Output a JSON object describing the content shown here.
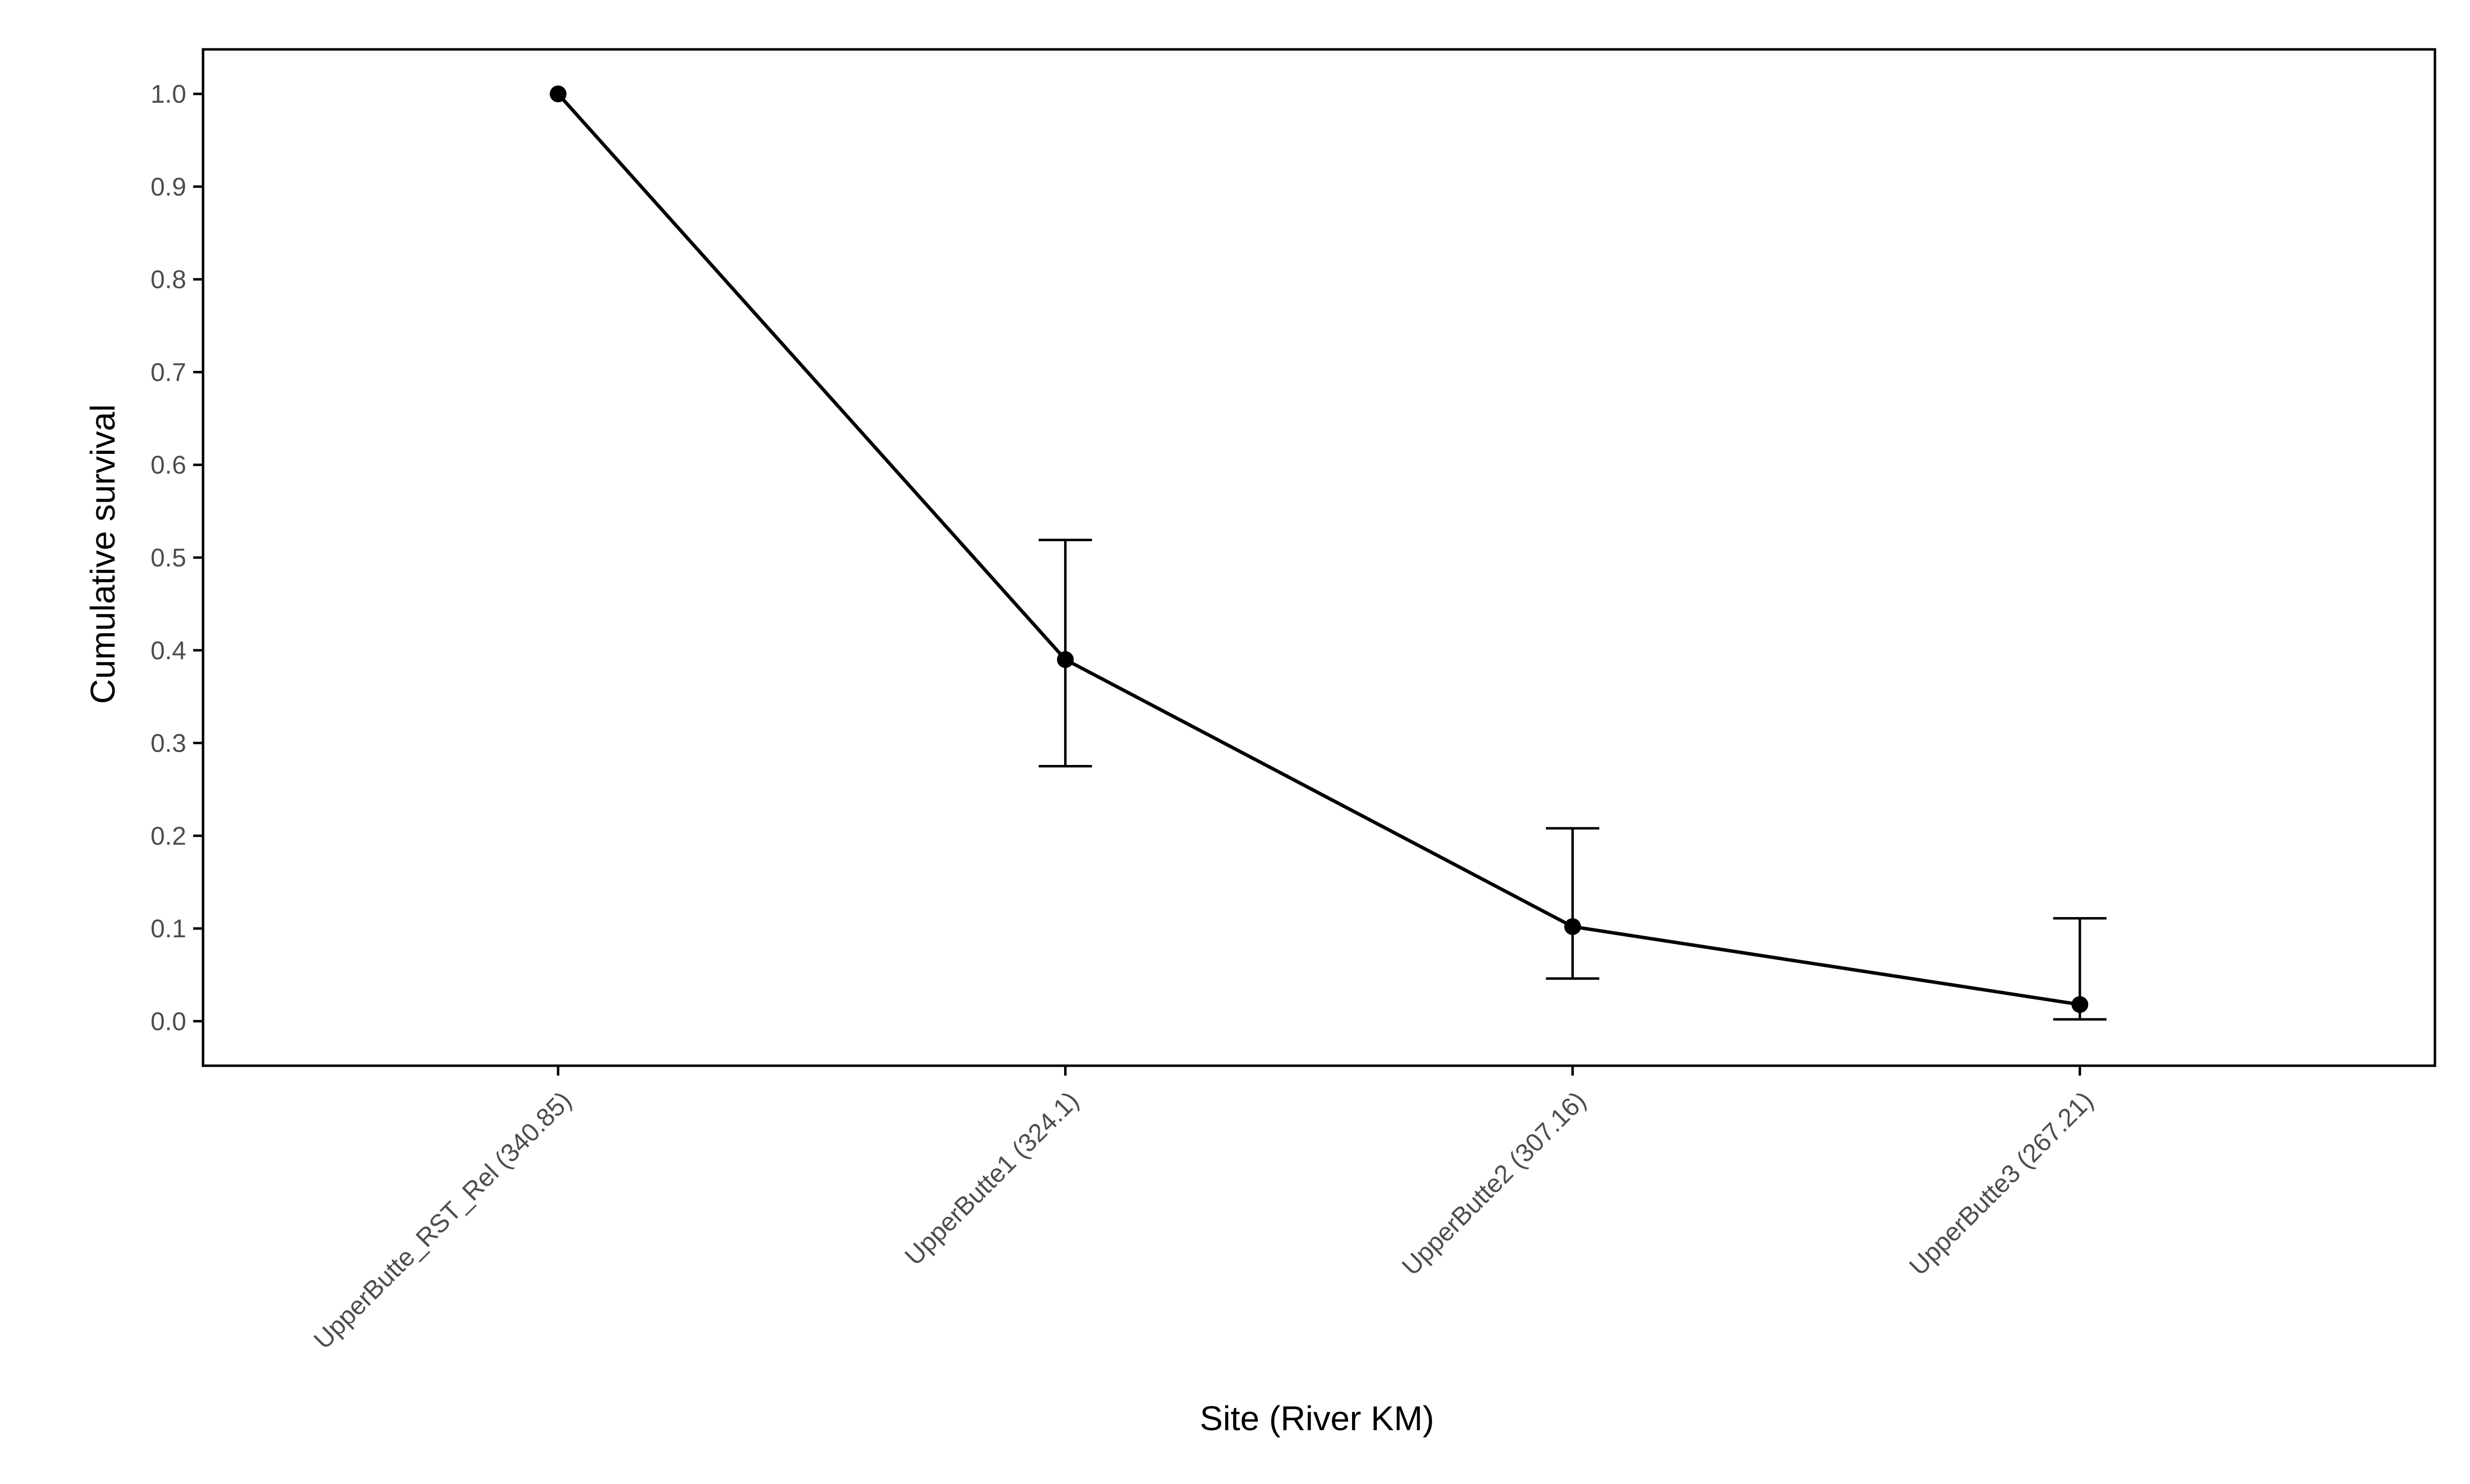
{
  "chart_data": {
    "type": "line",
    "title": "",
    "xlabel": "Site (River KM)",
    "ylabel": "Cumulative survival",
    "categories": [
      "UpperButte_RST_Rel (340.85)",
      "UpperButte1 (324.1)",
      "UpperButte2 (307.16)",
      "UpperButte3 (267.21)"
    ],
    "series": [
      {
        "values": [
          1.0,
          0.39,
          0.102,
          0.018
        ],
        "lower": [
          null,
          0.275,
          0.046,
          0.002
        ],
        "upper": [
          null,
          0.519,
          0.208,
          0.111
        ]
      }
    ],
    "ylim": [
      -0.048,
      1.048
    ],
    "yticks": [
      "0.0",
      "0.1",
      "0.2",
      "0.3",
      "0.4",
      "0.5",
      "0.6",
      "0.7",
      "0.8",
      "0.9",
      "1.0"
    ],
    "grid": false,
    "legend": "none",
    "colors": {
      "line": "#000000",
      "axis": "#000000",
      "tick_text": "#4d4d4d"
    }
  }
}
